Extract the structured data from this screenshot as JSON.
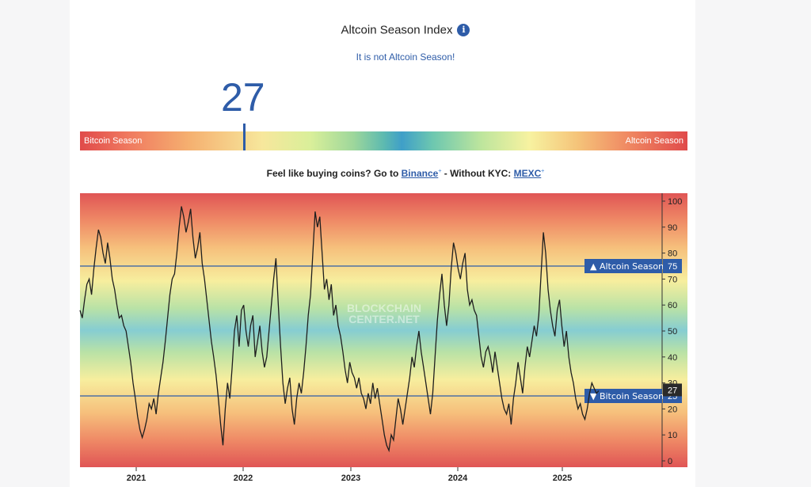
{
  "header": {
    "title": "Altcoin Season Index",
    "info_icon": "info-icon",
    "status": "It is not Altcoin Season!"
  },
  "gauge": {
    "value": "27",
    "left_label": "Bitcoin Season",
    "right_label": "Altcoin Season"
  },
  "promo": {
    "prefix": "Feel like buying coins? Go to ",
    "link1": "Binance",
    "middle": " - Without KYC: ",
    "link2": "MEXC",
    "sup": "+"
  },
  "chart_data": {
    "type": "line",
    "watermark": [
      "BLOCKCHAIN",
      "CENTER.NET"
    ],
    "x_ticks": [
      "2021",
      "2022",
      "2023",
      "2024",
      "2025"
    ],
    "ylim": [
      0,
      100
    ],
    "y_ticks": [
      "0",
      "10",
      "20",
      "30",
      "40",
      "50",
      "60",
      "70",
      "80",
      "90",
      "100"
    ],
    "thresholds": [
      {
        "label": "Altcoin Season",
        "value": 75,
        "marker": "▲"
      },
      {
        "label": "Bitcoin Season",
        "value": 25,
        "marker": "▼"
      }
    ],
    "current": {
      "value": 27,
      "label": "27"
    },
    "series": [
      {
        "date_start": "2020-06",
        "date_end": "2025-05",
        "values": [
          58,
          55,
          62,
          68,
          70,
          64,
          74,
          82,
          89,
          86,
          80,
          76,
          84,
          78,
          70,
          66,
          60,
          55,
          56,
          52,
          50,
          44,
          38,
          30,
          24,
          17,
          12,
          9,
          12,
          16,
          22,
          20,
          24,
          18,
          26,
          32,
          38,
          46,
          55,
          64,
          70,
          72,
          80,
          90,
          98,
          94,
          88,
          92,
          97,
          86,
          78,
          82,
          88,
          76,
          70,
          62,
          54,
          46,
          40,
          33,
          24,
          14,
          6,
          20,
          30,
          24,
          36,
          50,
          56,
          44,
          58,
          60,
          50,
          44,
          52,
          56,
          40,
          46,
          52,
          42,
          36,
          40,
          50,
          60,
          70,
          78,
          60,
          44,
          30,
          22,
          28,
          32,
          20,
          14,
          24,
          30,
          26,
          34,
          44,
          56,
          64,
          80,
          96,
          90,
          94,
          80,
          66,
          70,
          62,
          68,
          56,
          60,
          52,
          48,
          42,
          35,
          30,
          38,
          34,
          32,
          28,
          32,
          26,
          24,
          20,
          26,
          22,
          30,
          24,
          28,
          22,
          16,
          10,
          6,
          4,
          10,
          8,
          16,
          24,
          20,
          14,
          20,
          26,
          32,
          40,
          36,
          44,
          50,
          42,
          36,
          30,
          24,
          18,
          26,
          40,
          54,
          64,
          72,
          60,
          52,
          60,
          74,
          84,
          80,
          74,
          70,
          76,
          80,
          66,
          60,
          62,
          58,
          56,
          48,
          40,
          36,
          42,
          44,
          40,
          34,
          42,
          36,
          30,
          24,
          20,
          18,
          22,
          14,
          24,
          30,
          38,
          32,
          26,
          36,
          44,
          40,
          46,
          52,
          48,
          56,
          72,
          88,
          80,
          66,
          58,
          52,
          48,
          58,
          62,
          52,
          44,
          50,
          40,
          34,
          30,
          24,
          20,
          22,
          18,
          16,
          20,
          26,
          30,
          28,
          26,
          27
        ]
      }
    ]
  }
}
